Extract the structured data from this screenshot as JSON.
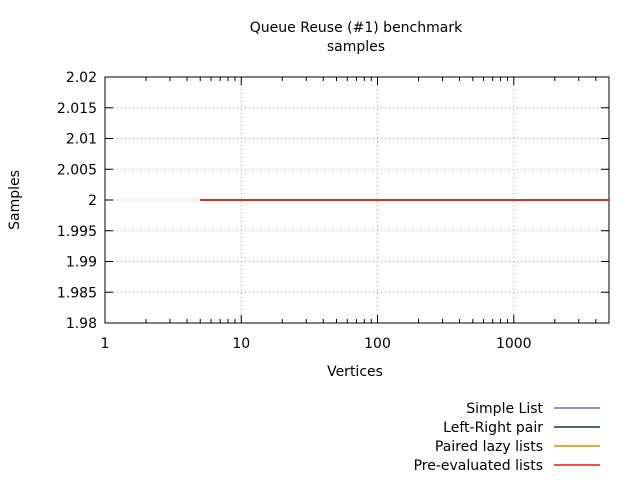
{
  "chart_data": {
    "type": "line",
    "title": "Queue Reuse (#1) benchmark",
    "subtitle": "samples",
    "xlabel": "Vertices",
    "ylabel": "Samples",
    "x_scale": "log10",
    "xlim": [
      1,
      5000
    ],
    "ylim": [
      1.98,
      2.02
    ],
    "x_ticks": [
      1,
      10,
      100,
      1000
    ],
    "x_tick_labels": [
      "1",
      "10",
      "100",
      "1000"
    ],
    "y_ticks": [
      1.98,
      1.985,
      1.99,
      1.995,
      2.0,
      2.005,
      2.01,
      2.015,
      2.02
    ],
    "y_tick_labels": [
      "1.98",
      "1.985",
      "1.99",
      "1.995",
      "2",
      "2.005",
      "2.01",
      "2.015",
      "2.02"
    ],
    "grid": true,
    "legend_position": "bottom-right",
    "series": [
      {
        "name": "Simple List",
        "color": "#7f66c6",
        "x": [
          5,
          5000
        ],
        "y": [
          2,
          2
        ]
      },
      {
        "name": "Left-Right pair",
        "color": "#0f3b2e",
        "x": [
          5,
          5000
        ],
        "y": [
          2,
          2
        ]
      },
      {
        "name": "Paired lazy lists",
        "color": "#c79200",
        "x": [
          5,
          5000
        ],
        "y": [
          2,
          2
        ]
      },
      {
        "name": "Pre-evaluated lists",
        "color": "#e41a1c",
        "x": [
          5,
          5000
        ],
        "y": [
          2,
          2
        ]
      }
    ]
  }
}
